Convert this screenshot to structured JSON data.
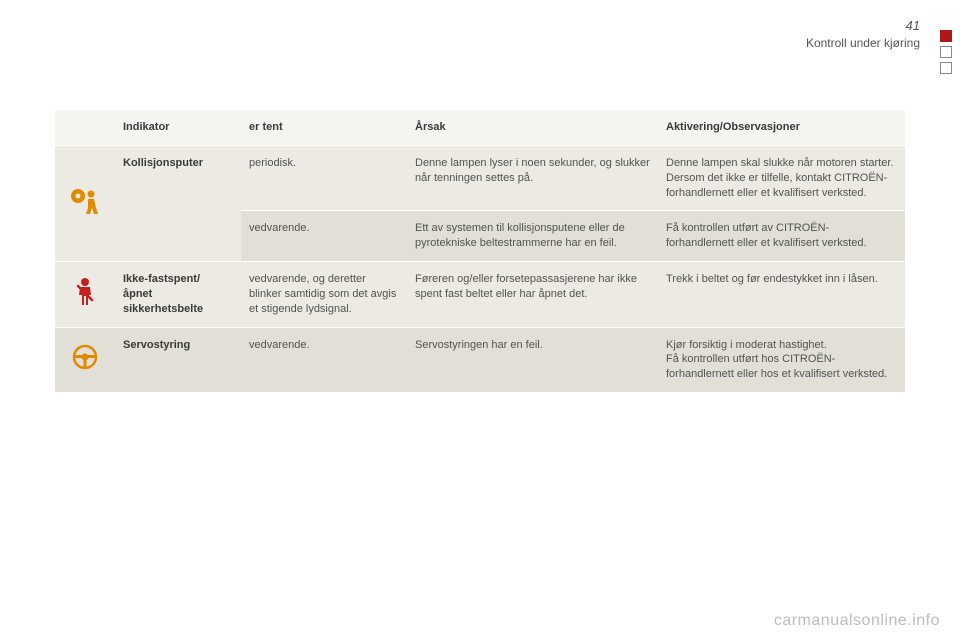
{
  "page_number": "41",
  "section_title": "Kontroll under kjøring",
  "side_tabs": {
    "tab_colors": [
      "#b01818",
      "#ffffff",
      "#ffffff"
    ],
    "border_color": "#888888"
  },
  "table": {
    "background_header": "#f5f4f0",
    "background_row_a": "#eceae3",
    "background_row_b": "#e2dfd6",
    "headers": {
      "indicator": "Indikator",
      "tent": "er tent",
      "cause": "Årsak",
      "action": "Aktivering/Observasjoner"
    },
    "rows": [
      {
        "icon": "airbag",
        "icon_color": "#e08a00",
        "indicator": "Kollisjonsputer",
        "tent": "periodisk.",
        "cause": "Denne lampen lyser i noen sekunder, og slukker når tenningen settes på.",
        "action": "Denne lampen skal slukke når motoren starter.\nDersom det ikke er tilfelle, kontakt CITROËN-forhandlernett eller et kvalifisert verksted.",
        "rowspan_icon": 2,
        "rowspan_indicator": 2,
        "shade": "a"
      },
      {
        "tent": "vedvarende.",
        "cause": "Ett av systemen til kollisjonsputene eller de pyrotekniske beltestrammerne har en feil.",
        "action": "Få kontrollen utført av CITROËN-forhandlernett eller et kvalifisert verksted.",
        "shade": "b"
      },
      {
        "icon": "seatbelt",
        "icon_color": "#c4201f",
        "indicator": "Ikke-fastspent/\nåpnet\nsikkerhetsbelte",
        "tent": "vedvarende, og deretter blinker samtidig som det avgis et stigende lydsignal.",
        "cause": "Føreren og/eller forsetepassasjerene har ikke spent fast beltet eller har åpnet det.",
        "action": "Trekk i beltet og før endestykket inn i låsen.",
        "shade": "a"
      },
      {
        "icon": "steering",
        "icon_color": "#e08a00",
        "indicator": "Servostyring",
        "tent": "vedvarende.",
        "cause": "Servostyringen har en feil.",
        "action": "Kjør forsiktig i moderat hastighet.\nFå kontrollen utført hos CITROËN-forhandlernett eller hos et kvalifisert verksted.",
        "shade": "b"
      }
    ]
  },
  "watermark": "carmanualsonline.info",
  "colors": {
    "text": "#3a3a3a",
    "muted": "#525252",
    "watermark": "#bdbdbd",
    "page_bg": "#ffffff"
  },
  "fontsizes": {
    "body": 11,
    "page_num": 13,
    "section": 12,
    "watermark": 16
  }
}
